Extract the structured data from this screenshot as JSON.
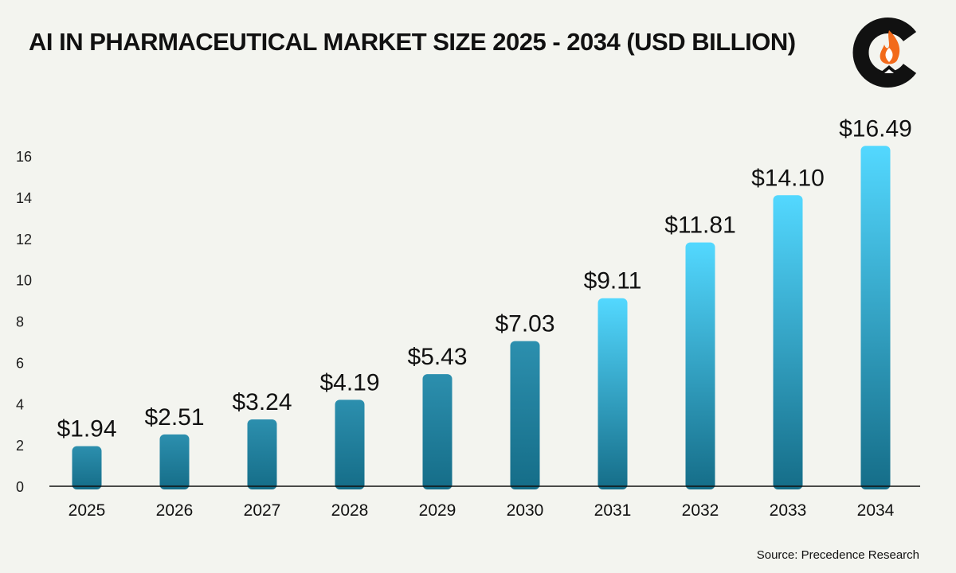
{
  "chart_data": {
    "type": "bar",
    "title": "AI IN PHARMACEUTICAL MARKET SIZE 2025 - 2034 (USD BILLION)",
    "xlabel": "",
    "ylabel": "",
    "categories": [
      "2025",
      "2026",
      "2027",
      "2028",
      "2029",
      "2030",
      "2031",
      "2032",
      "2033",
      "2034"
    ],
    "values": [
      1.94,
      2.51,
      3.24,
      4.19,
      5.43,
      7.03,
      9.11,
      11.81,
      14.1,
      16.49
    ],
    "data_labels": [
      "$1.94",
      "$2.51",
      "$3.24",
      "$4.19",
      "$5.43",
      "$7.03",
      "$9.11",
      "$11.81",
      "$14.10",
      "$16.49"
    ],
    "yticks": [
      0,
      2,
      4,
      6,
      8,
      10,
      12,
      14,
      16
    ],
    "ylim": [
      0,
      16.5
    ],
    "grid": false,
    "legend": "none"
  },
  "source": "Source: Precedence Research",
  "colors": {
    "background": "#f3f4ef",
    "bar_top_light": "#53d8ff",
    "bar_top_dark": "#2c8fae",
    "bar_bottom": "#156d88",
    "text": "#111111",
    "logo_dark": "#111111",
    "logo_flame": "#f26a1b"
  }
}
